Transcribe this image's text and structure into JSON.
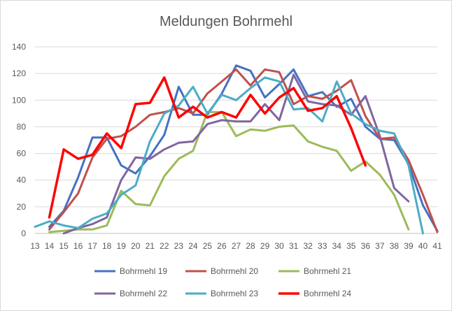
{
  "chart_data": {
    "type": "line",
    "title": "Meldungen Bohrmehl",
    "xlabel": "",
    "ylabel": "",
    "x": [
      13,
      14,
      15,
      16,
      17,
      18,
      19,
      20,
      21,
      22,
      23,
      24,
      25,
      26,
      27,
      28,
      29,
      30,
      31,
      32,
      33,
      34,
      35,
      36,
      37,
      38,
      39,
      40,
      41
    ],
    "ylim": [
      0,
      140
    ],
    "yticks": [
      0,
      20,
      40,
      60,
      80,
      100,
      120,
      140
    ],
    "grid": true,
    "legend_position": "bottom",
    "series": [
      {
        "name": "Bohrmehl 19",
        "color": "#4472c4",
        "width": 3,
        "points": [
          [
            14,
            5
          ],
          [
            15,
            17
          ],
          [
            16,
            42
          ],
          [
            17,
            72
          ],
          [
            18,
            72
          ],
          [
            19,
            51
          ],
          [
            20,
            45
          ],
          [
            21,
            58
          ],
          [
            22,
            74
          ],
          [
            23,
            110
          ],
          [
            24,
            89
          ],
          [
            25,
            89
          ],
          [
            26,
            105
          ],
          [
            27,
            126
          ],
          [
            28,
            122
          ],
          [
            29,
            102
          ],
          [
            30,
            112
          ],
          [
            31,
            123
          ],
          [
            32,
            103
          ],
          [
            33,
            106
          ],
          [
            34,
            95
          ],
          [
            35,
            101
          ],
          [
            36,
            80
          ],
          [
            37,
            71
          ],
          [
            38,
            70
          ],
          [
            39,
            52
          ],
          [
            40,
            21
          ],
          [
            41,
            2
          ]
        ]
      },
      {
        "name": "Bohrmehl 20",
        "color": "#c0504d",
        "width": 3,
        "points": [
          [
            14,
            3
          ],
          [
            15,
            16
          ],
          [
            16,
            30
          ],
          [
            17,
            57
          ],
          [
            18,
            71
          ],
          [
            19,
            73
          ],
          [
            20,
            80
          ],
          [
            21,
            89
          ],
          [
            22,
            91
          ],
          [
            23,
            94
          ],
          [
            24,
            90
          ],
          [
            25,
            105
          ],
          [
            26,
            114
          ],
          [
            27,
            123
          ],
          [
            28,
            111
          ],
          [
            29,
            123
          ],
          [
            30,
            121
          ],
          [
            31,
            97
          ],
          [
            32,
            103
          ],
          [
            33,
            101
          ],
          [
            34,
            107
          ],
          [
            35,
            115
          ],
          [
            36,
            88
          ],
          [
            37,
            71
          ],
          [
            38,
            72
          ],
          [
            39,
            55
          ],
          [
            40,
            29
          ],
          [
            41,
            1
          ]
        ]
      },
      {
        "name": "Bohrmehl 21",
        "color": "#9bbb59",
        "width": 3,
        "points": [
          [
            14,
            1
          ],
          [
            15,
            2
          ],
          [
            16,
            3
          ],
          [
            17,
            3
          ],
          [
            18,
            6
          ],
          [
            19,
            32
          ],
          [
            20,
            22
          ],
          [
            21,
            21
          ],
          [
            22,
            43
          ],
          [
            23,
            56
          ],
          [
            24,
            62
          ],
          [
            25,
            91
          ],
          [
            26,
            91
          ],
          [
            27,
            73
          ],
          [
            28,
            78
          ],
          [
            29,
            77
          ],
          [
            30,
            80
          ],
          [
            31,
            81
          ],
          [
            32,
            69
          ],
          [
            33,
            65
          ],
          [
            34,
            62
          ],
          [
            35,
            47
          ],
          [
            36,
            54
          ],
          [
            37,
            44
          ],
          [
            38,
            29
          ],
          [
            39,
            3
          ]
        ]
      },
      {
        "name": "Bohrmehl 22",
        "color": "#8064a2",
        "width": 3,
        "points": [
          [
            15,
            0
          ],
          [
            16,
            4
          ],
          [
            17,
            7
          ],
          [
            18,
            12
          ],
          [
            19,
            40
          ],
          [
            20,
            57
          ],
          [
            21,
            56
          ],
          [
            22,
            63
          ],
          [
            23,
            68
          ],
          [
            24,
            69
          ],
          [
            25,
            82
          ],
          [
            26,
            85
          ],
          [
            27,
            84
          ],
          [
            28,
            84
          ],
          [
            29,
            97
          ],
          [
            30,
            85
          ],
          [
            31,
            119
          ],
          [
            32,
            99
          ],
          [
            33,
            97
          ],
          [
            34,
            96
          ],
          [
            35,
            89
          ],
          [
            36,
            103
          ],
          [
            37,
            73
          ],
          [
            38,
            34
          ],
          [
            39,
            24
          ]
        ]
      },
      {
        "name": "Bohrmehl 23",
        "color": "#4bacc6",
        "width": 3,
        "points": [
          [
            13,
            5
          ],
          [
            14,
            9
          ],
          [
            15,
            6
          ],
          [
            16,
            4
          ],
          [
            17,
            11
          ],
          [
            18,
            15
          ],
          [
            19,
            29
          ],
          [
            20,
            36
          ],
          [
            21,
            69
          ],
          [
            22,
            90
          ],
          [
            23,
            96
          ],
          [
            24,
            110
          ],
          [
            25,
            90
          ],
          [
            26,
            104
          ],
          [
            27,
            100
          ],
          [
            28,
            109
          ],
          [
            29,
            117
          ],
          [
            30,
            114
          ],
          [
            31,
            93
          ],
          [
            32,
            94
          ],
          [
            33,
            84
          ],
          [
            34,
            114
          ],
          [
            35,
            90
          ],
          [
            36,
            82
          ],
          [
            37,
            77
          ],
          [
            38,
            75
          ],
          [
            39,
            51
          ],
          [
            40,
            0
          ]
        ]
      },
      {
        "name": "Bohrmehl 24",
        "color": "#ff0000",
        "width": 3.5,
        "points": [
          [
            14,
            12
          ],
          [
            15,
            63
          ],
          [
            16,
            56
          ],
          [
            17,
            59
          ],
          [
            18,
            75
          ],
          [
            19,
            64
          ],
          [
            20,
            97
          ],
          [
            21,
            98
          ],
          [
            22,
            117
          ],
          [
            23,
            87
          ],
          [
            24,
            95
          ],
          [
            25,
            87
          ],
          [
            26,
            91
          ],
          [
            27,
            87
          ],
          [
            28,
            104
          ],
          [
            29,
            90
          ],
          [
            30,
            102
          ],
          [
            31,
            109
          ],
          [
            32,
            92
          ],
          [
            33,
            94
          ],
          [
            34,
            103
          ],
          [
            35,
            79
          ],
          [
            36,
            51
          ]
        ]
      }
    ]
  }
}
